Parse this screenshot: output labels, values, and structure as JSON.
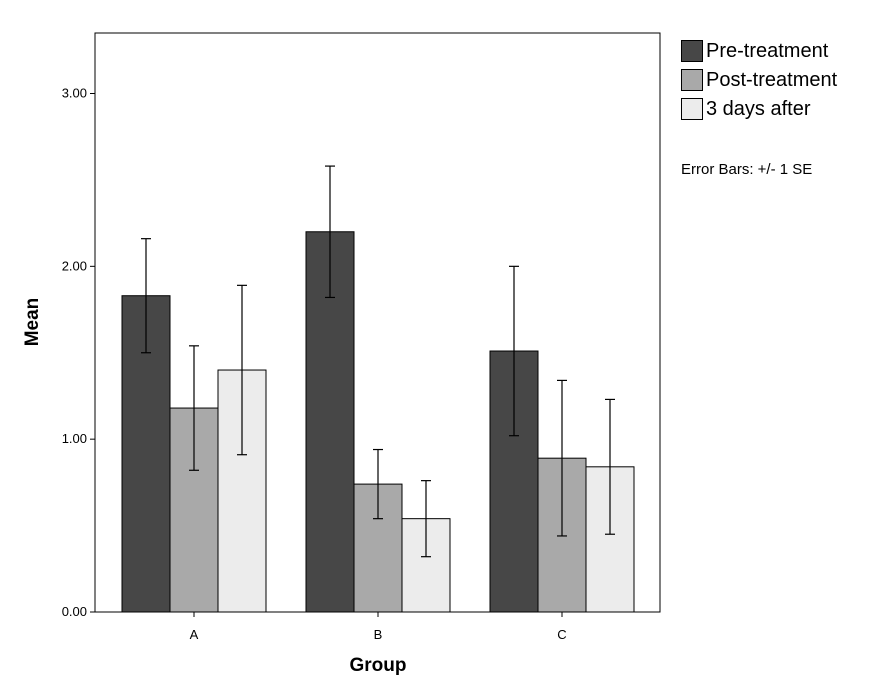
{
  "chart_data": {
    "type": "bar",
    "xlabel": "Group",
    "ylabel": "Mean",
    "categories": [
      "A",
      "B",
      "C"
    ],
    "ylim": [
      0,
      3.35
    ],
    "yticks": [
      0,
      1,
      2,
      3
    ],
    "ytick_labels": [
      "0.00",
      "1.00",
      "2.00",
      "3.00"
    ],
    "grid": false,
    "legend_position": "right-top",
    "series": [
      {
        "name": "Pre-treatment",
        "color": "#474747",
        "values": [
          1.83,
          2.2,
          1.51
        ],
        "error": [
          0.33,
          0.38,
          0.49
        ]
      },
      {
        "name": "Post-treatment",
        "color": "#a9a9a9",
        "values": [
          1.18,
          0.74,
          0.89
        ],
        "error": [
          0.36,
          0.2,
          0.45
        ]
      },
      {
        "name": "3 days after",
        "color": "#ececec",
        "values": [
          1.4,
          0.54,
          0.84
        ],
        "error": [
          0.49,
          0.22,
          0.39
        ]
      }
    ],
    "annotation": "Error Bars: +/- 1 SE"
  }
}
